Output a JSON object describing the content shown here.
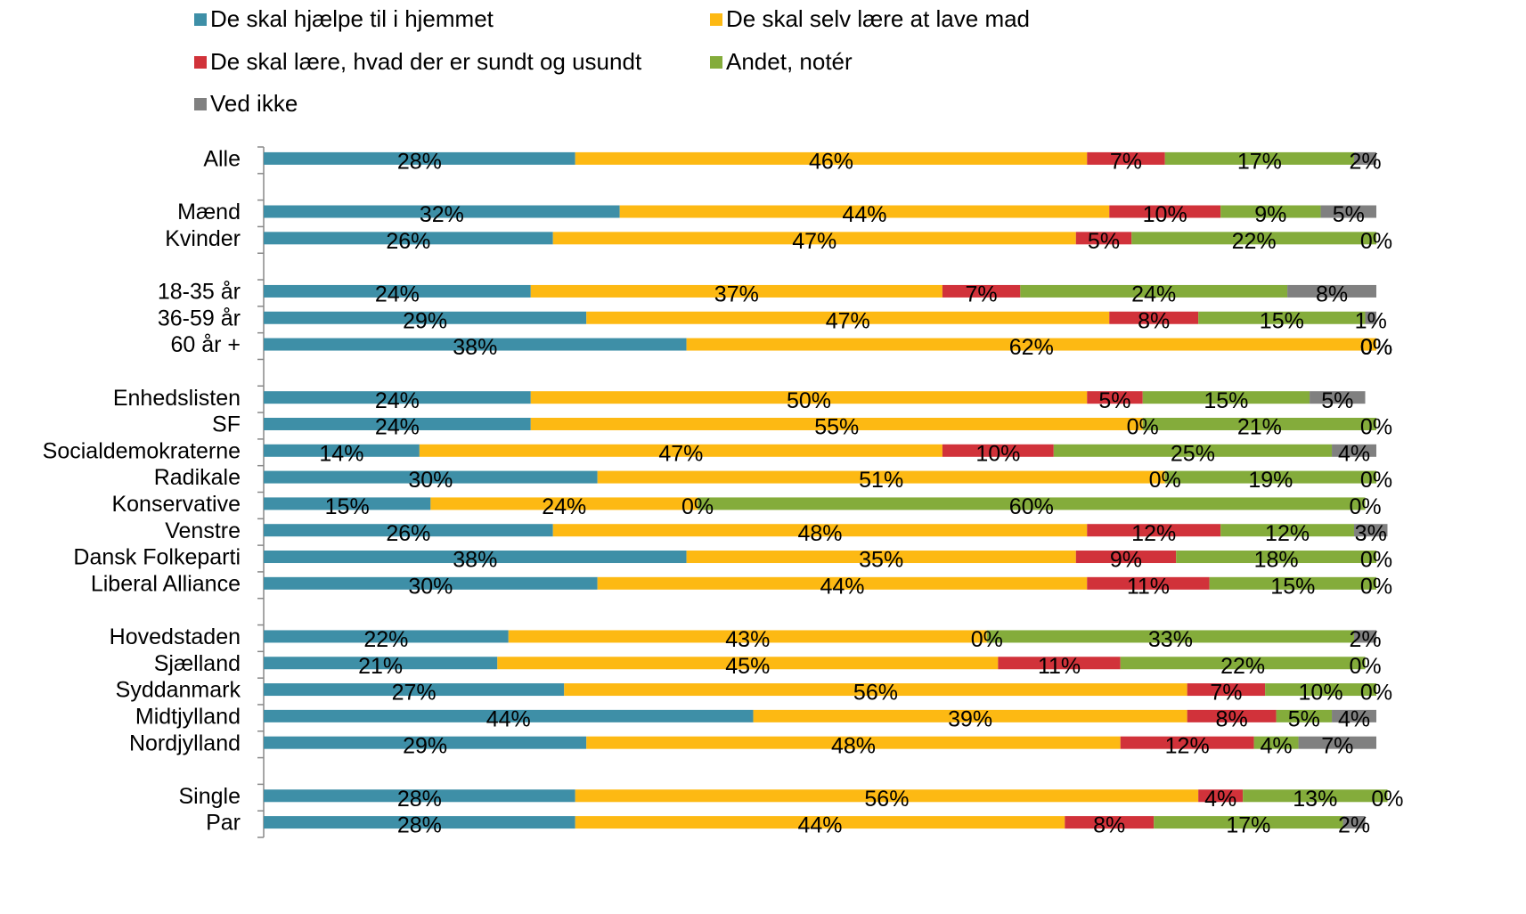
{
  "chart_data": {
    "type": "stacked_bar_horizontal",
    "categories": [
      "Alle",
      null,
      "Mænd",
      "Kvinder",
      null,
      "18-35 år",
      "36-59 år",
      "60 år +",
      null,
      "Enhedslisten",
      "SF",
      "Socialdemokraterne",
      "Radikale",
      "Konservative",
      "Venstre",
      "Dansk Folkeparti",
      "Liberal Alliance",
      null,
      "Hovedstaden",
      "Sjælland",
      "Syddanmark",
      "Midtjylland",
      "Nordjylland",
      null,
      "Single",
      "Par"
    ],
    "xlim": [
      0,
      100
    ],
    "legend": "top",
    "series": [
      {
        "name": "De skal hjælpe til i hjemmet",
        "color": "#3e8fa7",
        "values": [
          28,
          null,
          32,
          26,
          null,
          24,
          29,
          38,
          null,
          24,
          24,
          14,
          30,
          15,
          26,
          38,
          30,
          null,
          22,
          21,
          27,
          44,
          29,
          null,
          28,
          28
        ],
        "value_labels": [
          "28%",
          null,
          "32%",
          "26%",
          null,
          "24%",
          "29%",
          "38%",
          null,
          "24%",
          "24%",
          "14%",
          "30%",
          "15%",
          "26%",
          "38%",
          "30%",
          null,
          "22%",
          "21%",
          "27%",
          "44%",
          "29%",
          null,
          "28%",
          "28%"
        ]
      },
      {
        "name": "De skal selv lære at lave mad",
        "color": "#fdb913",
        "values": [
          46,
          null,
          44,
          47,
          null,
          37,
          47,
          62,
          null,
          50,
          55,
          47,
          51,
          24,
          48,
          35,
          44,
          null,
          43,
          45,
          56,
          39,
          48,
          null,
          56,
          44
        ],
        "value_labels": [
          "46%",
          null,
          "44%",
          "47%",
          null,
          "37%",
          "47%",
          "62%",
          null,
          "50%",
          "55%",
          "47%",
          "51%",
          "24%",
          "48%",
          "35%",
          "44%",
          null,
          "43%",
          "45%",
          "56%",
          "39%",
          "48%",
          null,
          "56%",
          "44%"
        ]
      },
      {
        "name": "De skal lære, hvad der er sundt og usundt",
        "color": "#d1323a",
        "values": [
          7,
          null,
          10,
          5,
          null,
          7,
          8,
          0,
          null,
          5,
          0,
          10,
          0,
          0,
          12,
          9,
          11,
          null,
          0,
          11,
          7,
          8,
          12,
          null,
          4,
          8
        ],
        "value_labels": [
          "7%",
          null,
          "10%",
          "5%",
          null,
          "7%",
          "8%",
          "0%",
          null,
          "5%",
          "0%",
          "10%",
          "0%",
          "0%",
          "12%",
          "9%",
          "11%",
          null,
          "0%",
          "11%",
          "7%",
          "8%",
          "12%",
          null,
          "4%",
          "8%"
        ]
      },
      {
        "name": "Andet, notér",
        "color": "#84ac3b",
        "values": [
          17,
          null,
          9,
          22,
          null,
          24,
          15,
          0,
          null,
          15,
          21,
          25,
          19,
          60,
          12,
          18,
          15,
          null,
          33,
          22,
          10,
          5,
          4,
          null,
          13,
          17
        ],
        "value_labels": [
          "17%",
          null,
          "9%",
          "22%",
          null,
          "24%",
          "15%",
          "0%",
          null,
          "15%",
          "21%",
          "25%",
          "19%",
          "60%",
          "12%",
          "18%",
          "15%",
          null,
          "33%",
          "22%",
          "10%",
          "5%",
          "4%",
          null,
          "13%",
          "17%"
        ]
      },
      {
        "name": "Ved ikke",
        "color": "#808080",
        "values": [
          2,
          null,
          5,
          0,
          null,
          8,
          1,
          0,
          null,
          5,
          0,
          4,
          0,
          0,
          3,
          0,
          0,
          null,
          2,
          0,
          0,
          4,
          7,
          null,
          0,
          2
        ],
        "value_labels": [
          "2%",
          null,
          "5%",
          "0%",
          null,
          "8%",
          "1%",
          "0%",
          null,
          "5%",
          "0%",
          "4%",
          "0%",
          "0%",
          "3%",
          "0%",
          "0%",
          null,
          "2%",
          "0%",
          "0%",
          "4%",
          "7%",
          null,
          "0%",
          "2%"
        ]
      }
    ]
  }
}
